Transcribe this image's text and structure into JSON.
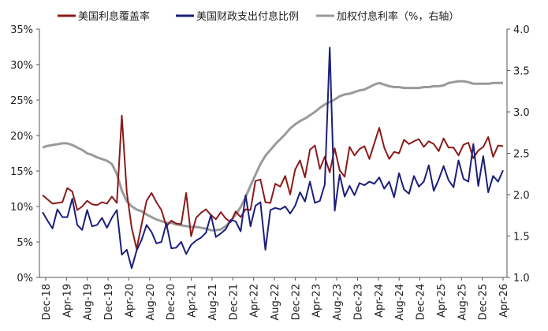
{
  "chart_data": {
    "type": "line",
    "legend": [
      {
        "key": "s1",
        "label": "美国利息覆盖率",
        "color": "#8B1A1A"
      },
      {
        "key": "s2",
        "label": "美国财政支出付息比例",
        "color": "#1B1F7A"
      },
      {
        "key": "s3",
        "label": "加权付息利率（%，右轴）",
        "color": "#9A9A9A"
      }
    ],
    "legend_position": "top",
    "grid": false,
    "x_tick_labels": [
      "Dec-18",
      "Apr-19",
      "Aug-19",
      "Dec-19",
      "Apr-20",
      "Aug-20",
      "Dec-20",
      "Apr-21",
      "Aug-21",
      "Dec-21",
      "Apr-22",
      "Aug-22",
      "Dec-22",
      "Apr-23",
      "Aug-23",
      "Dec-23",
      "Apr-24",
      "Aug-24",
      "Dec-24",
      "Apr-25",
      "Aug-25",
      "Dec-25",
      "Apr-26"
    ],
    "y_left": {
      "min": 0,
      "max": 35,
      "ticks": [
        "0%",
        "5%",
        "10%",
        "15%",
        "20%",
        "25%",
        "30%",
        "35%"
      ]
    },
    "y_right": {
      "min": 1.0,
      "max": 4.0,
      "ticks": [
        "1.0",
        "1.5",
        "2.0",
        "2.5",
        "3.0",
        "3.5",
        "4.0"
      ]
    },
    "series": [
      {
        "name": "美国利息覆盖率",
        "axis": "left",
        "color": "#8B1A1A",
        "values": [
          11.6,
          11.0,
          10.4,
          10.5,
          10.6,
          12.6,
          12.1,
          9.5,
          10.0,
          10.8,
          10.3,
          10.2,
          10.6,
          10.4,
          11.4,
          10.5,
          22.8,
          12.0,
          7.0,
          4.0,
          7.5,
          10.8,
          11.9,
          10.6,
          9.5,
          7.2,
          8.0,
          7.6,
          7.5,
          11.9,
          5.8,
          8.4,
          9.1,
          9.6,
          8.8,
          8.2,
          9.2,
          8.3,
          7.8,
          9.3,
          8.5,
          9.6,
          9.5,
          13.6,
          13.8,
          10.6,
          10.5,
          13.2,
          12.8,
          14.3,
          11.7,
          15.2,
          16.5,
          14.1,
          18.0,
          18.6,
          15.3,
          17.0,
          14.8,
          18.2,
          15.1,
          14.2,
          18.4,
          17.2,
          18.1,
          18.5,
          16.7,
          18.9,
          21.1,
          18.3,
          16.7,
          17.7,
          17.5,
          19.4,
          18.8,
          19.2,
          19.5,
          18.4,
          19.2,
          18.8,
          17.8,
          19.6,
          18.3,
          18.3,
          17.2,
          18.7,
          19.0,
          16.8,
          17.9,
          18.4,
          19.8,
          17.0,
          18.6,
          18.5
        ]
      },
      {
        "name": "美国财政支出付息比例",
        "axis": "left",
        "color": "#1B1F7A",
        "values": [
          9.2,
          8.0,
          6.9,
          9.6,
          8.5,
          8.5,
          11.1,
          7.4,
          6.7,
          9.5,
          7.2,
          7.4,
          8.4,
          7.0,
          8.4,
          9.5,
          3.2,
          3.9,
          1.3,
          3.8,
          5.3,
          7.4,
          6.4,
          4.8,
          5.0,
          7.6,
          4.1,
          4.2,
          5.0,
          3.3,
          4.6,
          5.2,
          5.6,
          6.3,
          8.8,
          5.7,
          6.2,
          6.8,
          8.1,
          7.9,
          6.5,
          11.6,
          7.2,
          10.1,
          10.6,
          3.9,
          9.5,
          9.8,
          9.6,
          10.0,
          9.0,
          10.1,
          12.0,
          10.7,
          13.5,
          10.5,
          10.8,
          13.1,
          32.4,
          9.4,
          14.5,
          11.4,
          12.9,
          11.6,
          13.3,
          13.0,
          13.5,
          13.2,
          14.1,
          12.5,
          13.5,
          11.3,
          14.7,
          12.4,
          11.8,
          14.3,
          12.8,
          13.5,
          15.8,
          12.2,
          13.8,
          15.7,
          13.7,
          12.7,
          16.5,
          13.9,
          13.5,
          18.8,
          12.9,
          17.1,
          12.0,
          14.3,
          13.5,
          15.1
        ]
      },
      {
        "name": "加权付息利率（%，右轴）",
        "axis": "right",
        "color": "#9A9A9A",
        "values": [
          2.57,
          2.59,
          2.6,
          2.61,
          2.62,
          2.62,
          2.6,
          2.57,
          2.54,
          2.5,
          2.48,
          2.45,
          2.43,
          2.41,
          2.37,
          2.25,
          2.05,
          1.92,
          1.86,
          1.82,
          1.8,
          1.76,
          1.73,
          1.7,
          1.68,
          1.66,
          1.66,
          1.64,
          1.63,
          1.62,
          1.61,
          1.61,
          1.6,
          1.59,
          1.57,
          1.57,
          1.58,
          1.62,
          1.68,
          1.76,
          1.85,
          1.97,
          2.11,
          2.24,
          2.37,
          2.47,
          2.54,
          2.61,
          2.67,
          2.73,
          2.8,
          2.85,
          2.89,
          2.92,
          2.96,
          3.0,
          3.05,
          3.09,
          3.12,
          3.15,
          3.19,
          3.21,
          3.22,
          3.24,
          3.26,
          3.27,
          3.3,
          3.33,
          3.35,
          3.33,
          3.31,
          3.3,
          3.3,
          3.29,
          3.29,
          3.29,
          3.29,
          3.3,
          3.3,
          3.31,
          3.31,
          3.32,
          3.35,
          3.36,
          3.37,
          3.37,
          3.36,
          3.34,
          3.34,
          3.34,
          3.34,
          3.35,
          3.35,
          3.35
        ]
      }
    ]
  }
}
